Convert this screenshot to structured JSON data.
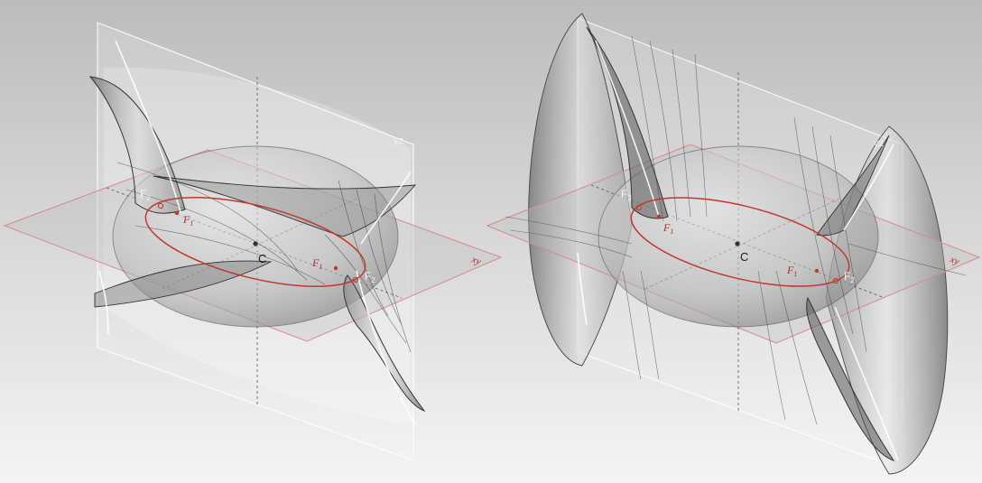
{
  "figures": [
    {
      "name": "confocal-ellipsoid-with-one-sheet-hyperboloid",
      "labels": {
        "plane_yz": "yz",
        "plane_xy": "xy",
        "center": "C",
        "focus_f1_left": "F",
        "focus_f1_left_sub": "1",
        "focus_f1_right": "F",
        "focus_f1_right_sub": "1",
        "focus_f2_left": "F",
        "focus_f2_left_sub": "2",
        "focus_f2_right": "F",
        "focus_f2_right_sub": "2"
      }
    },
    {
      "name": "confocal-ellipsoid-with-two-sheet-hyperboloid",
      "labels": {
        "plane_yz": "yz",
        "plane_xy": "xy",
        "center": "C",
        "focus_f1_left": "F",
        "focus_f1_left_sub": "1",
        "focus_f1_right": "F",
        "focus_f1_right_sub": "1",
        "focus_f2_left": "F",
        "focus_f2_left_sub": "2",
        "focus_f2_right": "F",
        "focus_f2_right_sub": "2"
      }
    }
  ],
  "colors": {
    "focal_ellipse": "#c0392b",
    "xy_plane_edge": "#d98a8a",
    "yz_plane_edge": "#ffffff",
    "surface_shade": "#9a9a9a",
    "label_dark": "#1a1a1a",
    "label_red": "#b02a2a",
    "label_light": "#f2f2f2"
  }
}
